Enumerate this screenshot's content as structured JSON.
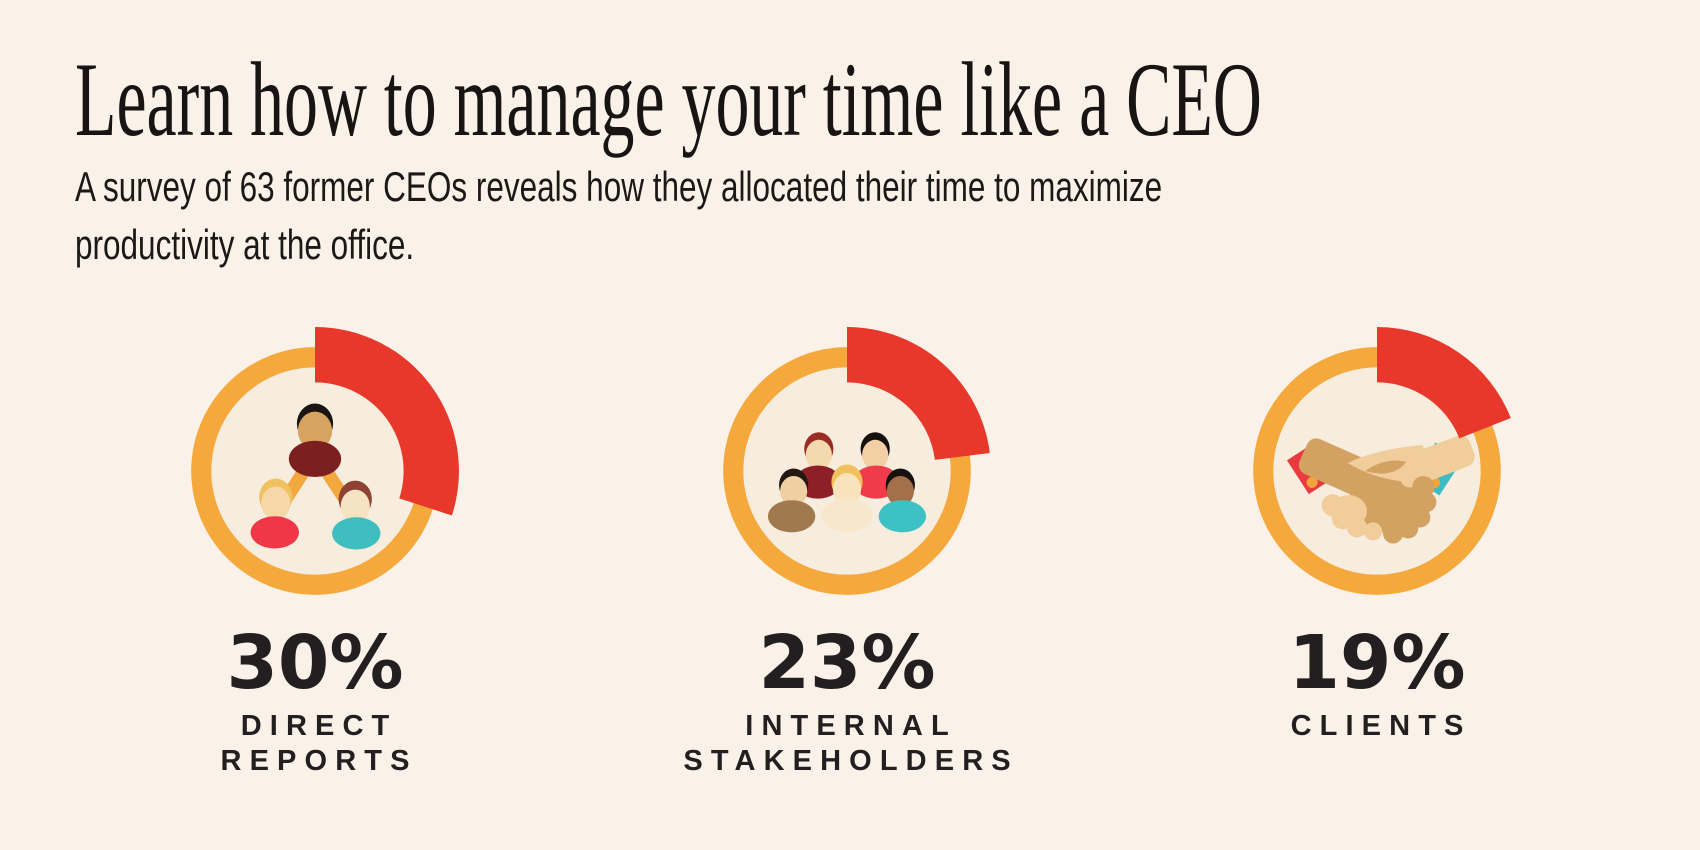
{
  "colors": {
    "background": "#FAF2E9",
    "inner_disc": "#F7EDDE",
    "ring_orange": "#F5A93D",
    "arc_red": "#E8382B",
    "text_dark": "#231F20"
  },
  "header": {
    "title": "Learn how to manage your time like a CEO",
    "subtitle": "A survey of 63 former CEOs reveals how they allocated their time to maximize productivity at the office."
  },
  "chart_data": {
    "type": "donut-gauge-set",
    "title": "Learn how to manage your time like a CEO",
    "subtitle": "A survey of 63 former CEOs reveals how they allocated their time to maximize productivity at the office.",
    "unit": "%",
    "gauge_style": {
      "start_angle_deg": 0,
      "direction": "clockwise",
      "max_value": 100,
      "ring_color": "#F5A93D",
      "arc_color": "#E8382B"
    },
    "items": [
      {
        "value": 30,
        "percent_label": "30%",
        "label": "DIRECT REPORTS",
        "label_lines": [
          "DIRECT",
          "REPORTS"
        ],
        "icon": "org-chart-icon"
      },
      {
        "value": 23,
        "percent_label": "23%",
        "label": "INTERNAL STAKEHOLDERS",
        "label_lines": [
          "INTERNAL",
          "STAKEHOLDERS"
        ],
        "icon": "people-group-icon"
      },
      {
        "value": 19,
        "percent_label": "19%",
        "label": "CLIENTS",
        "label_lines": [
          "CLIENTS"
        ],
        "icon": "handshake-icon"
      }
    ]
  }
}
